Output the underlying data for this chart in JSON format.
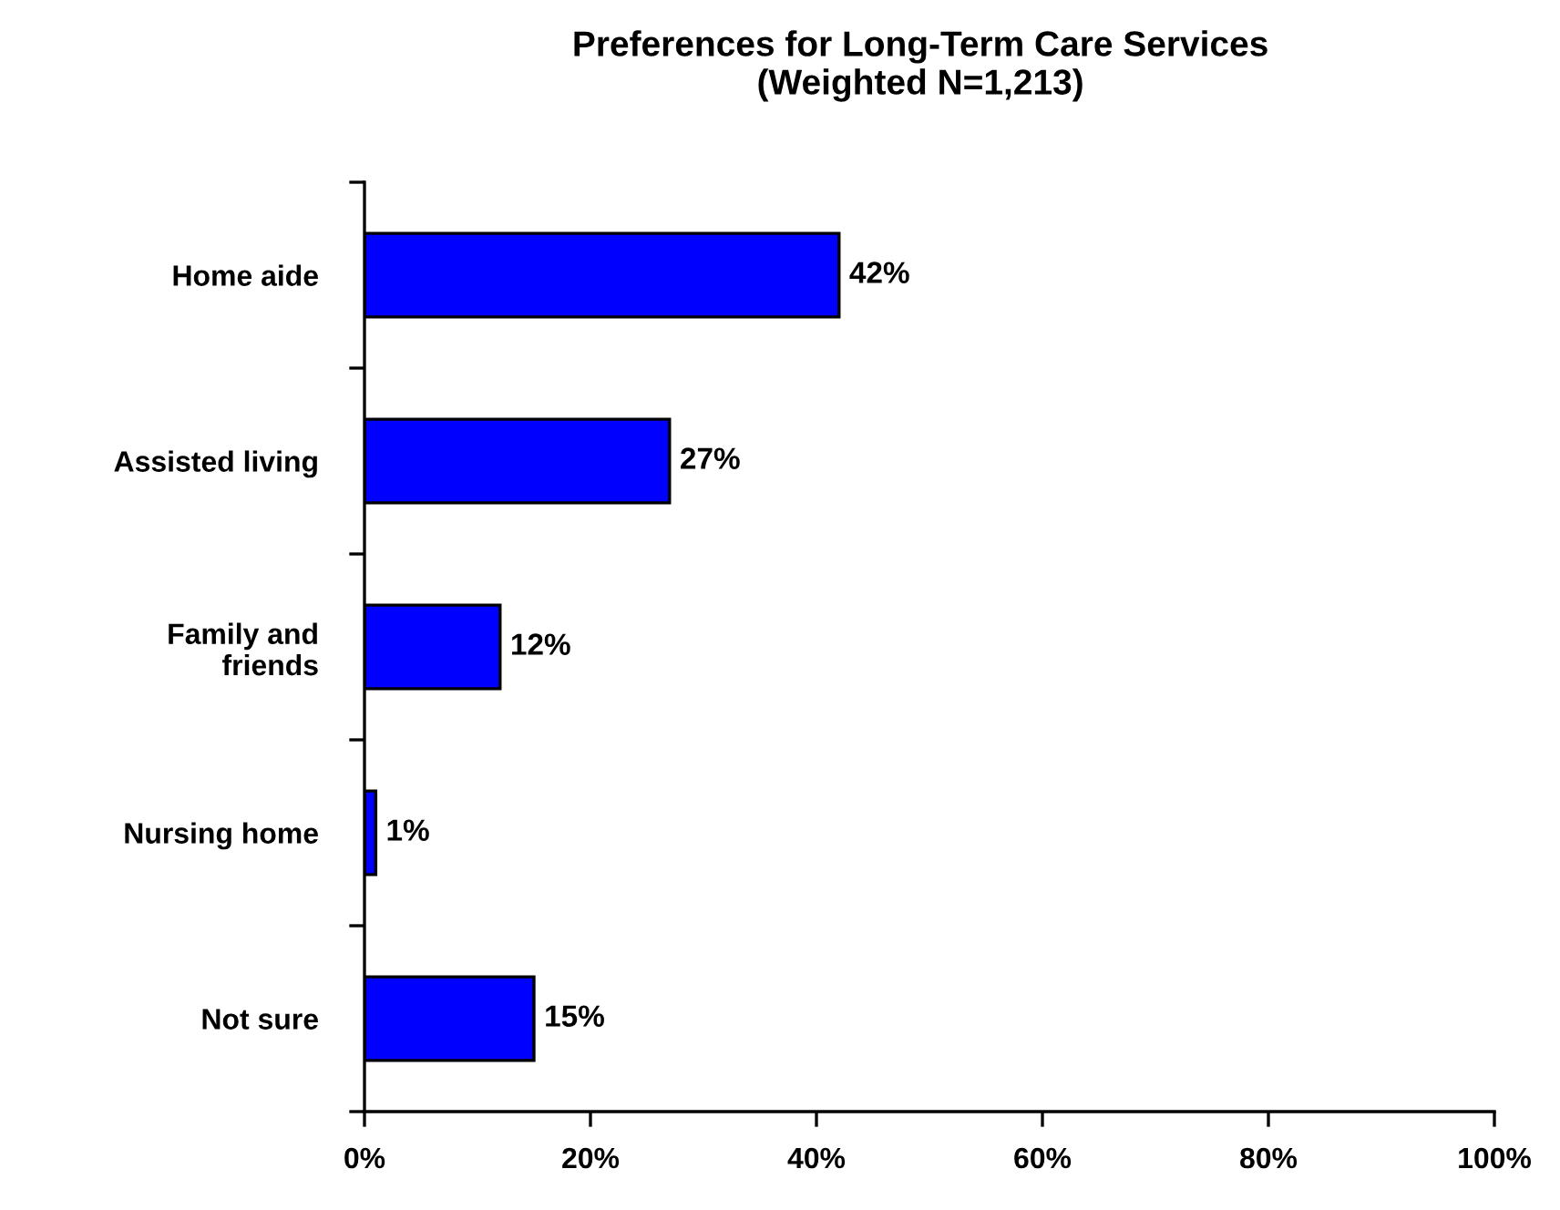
{
  "chart_data": {
    "type": "bar",
    "orientation": "horizontal",
    "title": "Preferences for Long-Term Care Services\n(Weighted N=1,213)",
    "categories": [
      "Home aide",
      "Assisted living",
      "Family and\nfriends",
      "Nursing home",
      "Not sure"
    ],
    "values": [
      42,
      27,
      12,
      1,
      15
    ],
    "value_labels": [
      "42%",
      "27%",
      "12%",
      "1%",
      "15%"
    ],
    "color": "#0000ff",
    "xlim": [
      0,
      100
    ],
    "xticks": [
      {
        "value": 0,
        "label": "0%"
      },
      {
        "value": 20,
        "label": "20%"
      },
      {
        "value": 40,
        "label": "40%"
      },
      {
        "value": 60,
        "label": "60%"
      },
      {
        "value": 80,
        "label": "80%"
      },
      {
        "value": 100,
        "label": "100%"
      }
    ],
    "grid": false,
    "legend": false
  }
}
